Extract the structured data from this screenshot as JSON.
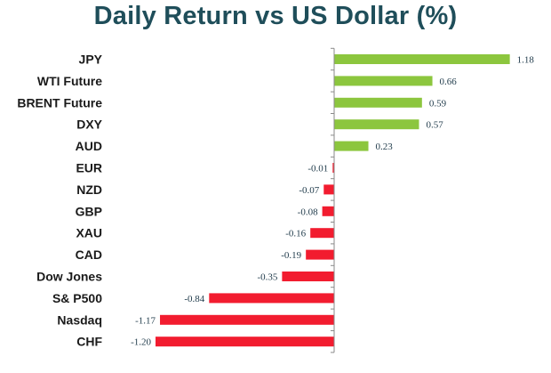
{
  "chart_data": {
    "type": "bar",
    "orientation": "horizontal",
    "title": "Daily Return vs US Dollar (%)",
    "categories": [
      "JPY",
      "WTI Future",
      "BRENT Future",
      "DXY",
      "AUD",
      "EUR",
      "NZD",
      "GBP",
      "XAU",
      "CAD",
      "Dow Jones",
      "S& P500",
      "Nasdaq",
      "CHF"
    ],
    "values": [
      1.18,
      0.66,
      0.59,
      0.57,
      0.23,
      -0.01,
      -0.07,
      -0.08,
      -0.16,
      -0.19,
      -0.35,
      -0.84,
      -1.17,
      -1.2
    ],
    "value_labels": [
      "1.18",
      "0.66",
      "0.59",
      "0.57",
      "0.23",
      "-0.01",
      "-0.07",
      "-0.08",
      "-0.16",
      "-0.19",
      "-0.35",
      "-0.84",
      "-1.17",
      "-1.20"
    ],
    "colors": {
      "positive": "#8cc63e",
      "negative": "#f21c2f",
      "axis": "#8a8a8a",
      "title": "#1f4e5a"
    }
  }
}
